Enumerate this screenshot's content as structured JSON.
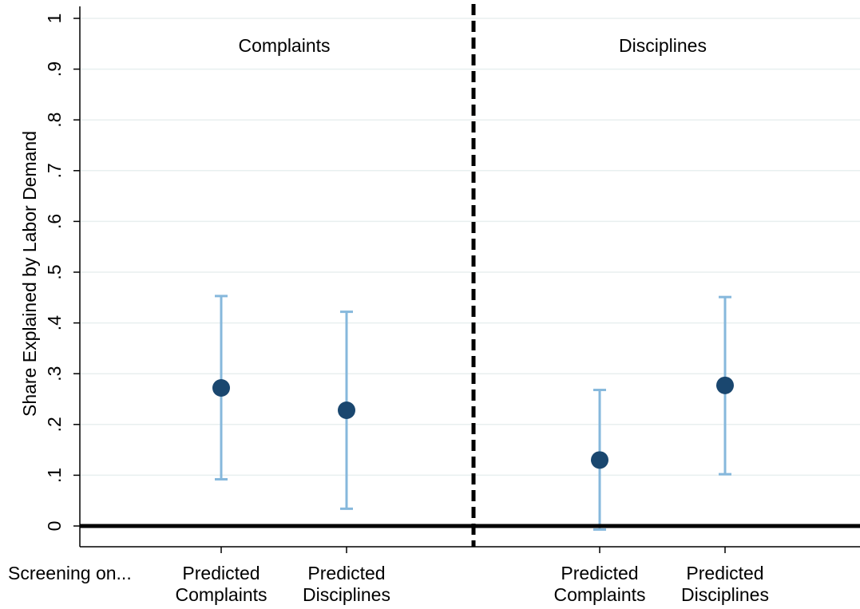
{
  "chart_data": {
    "type": "scatter",
    "ylabel": "Share Explained by Labor Demand",
    "ylim": [
      0,
      1
    ],
    "yticks": [
      {
        "value": 0,
        "label": "0"
      },
      {
        "value": 0.1,
        "label": ".1"
      },
      {
        "value": 0.2,
        "label": ".2"
      },
      {
        "value": 0.3,
        "label": ".3"
      },
      {
        "value": 0.4,
        "label": ".4"
      },
      {
        "value": 0.5,
        "label": ".5"
      },
      {
        "value": 0.6,
        "label": ".6"
      },
      {
        "value": 0.7,
        "label": ".7"
      },
      {
        "value": 0.8,
        "label": ".8"
      },
      {
        "value": 0.9,
        "label": ".9"
      },
      {
        "value": 1,
        "label": "1"
      }
    ],
    "x_row_label": "Screening on...",
    "grid": true,
    "reference_line_at": 0,
    "panels": [
      {
        "title": "Complaints",
        "points": [
          {
            "category_lines": [
              "Predicted",
              "Complaints"
            ],
            "estimate": 0.272,
            "ci_low": 0.092,
            "ci_high": 0.453
          },
          {
            "category_lines": [
              "Predicted",
              "Disciplines"
            ],
            "estimate": 0.228,
            "ci_low": 0.034,
            "ci_high": 0.422
          }
        ]
      },
      {
        "title": "Disciplines",
        "points": [
          {
            "category_lines": [
              "Predicted",
              "Complaints"
            ],
            "estimate": 0.13,
            "ci_low": -0.007,
            "ci_high": 0.268
          },
          {
            "category_lines": [
              "Predicted",
              "Disciplines"
            ],
            "estimate": 0.277,
            "ci_low": 0.102,
            "ci_high": 0.451
          }
        ]
      }
    ],
    "colors": {
      "marker": "#1a476f",
      "ci": "#86b8dc",
      "grid": "#e8efef",
      "axis": "#000000"
    }
  }
}
